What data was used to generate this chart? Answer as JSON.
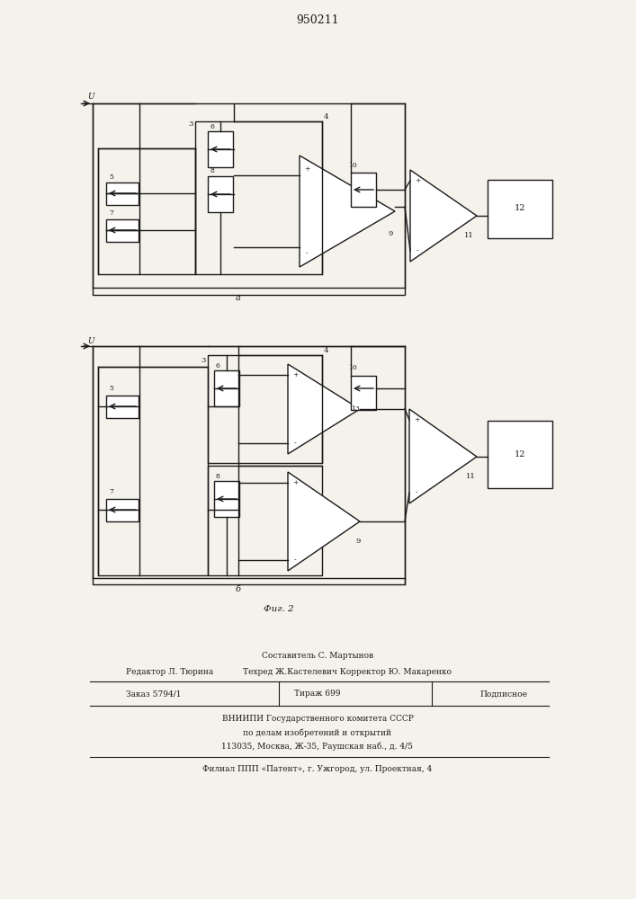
{
  "title": "950211",
  "bg_color": "#f5f2ec",
  "line_color": "#1a1a1a",
  "fig1_a_label": "a",
  "fig2_b_label": "б",
  "fig_caption": "Фиг. 2",
  "footer": {
    "line1": "Составитель С. Мартынов",
    "line2_left": "Редактор Л. Тюрина",
    "line2_right": "Техред Ж.Кастелевич Корректор Ю. Макаренко",
    "order": "Заказ 5794/1",
    "tirazh": "Тираж 699",
    "podp": "Подписное",
    "vniip1": "ВНИИПИ Государственного комитета СССР",
    "vniip2": "по делам изобретений и открытий",
    "addr": "113035, Москва, Ж-35, Раушская наб., д. 4/5",
    "filial": "Филиал ППП «Патент», г. Ужгород, ул. Проектная, 4"
  }
}
